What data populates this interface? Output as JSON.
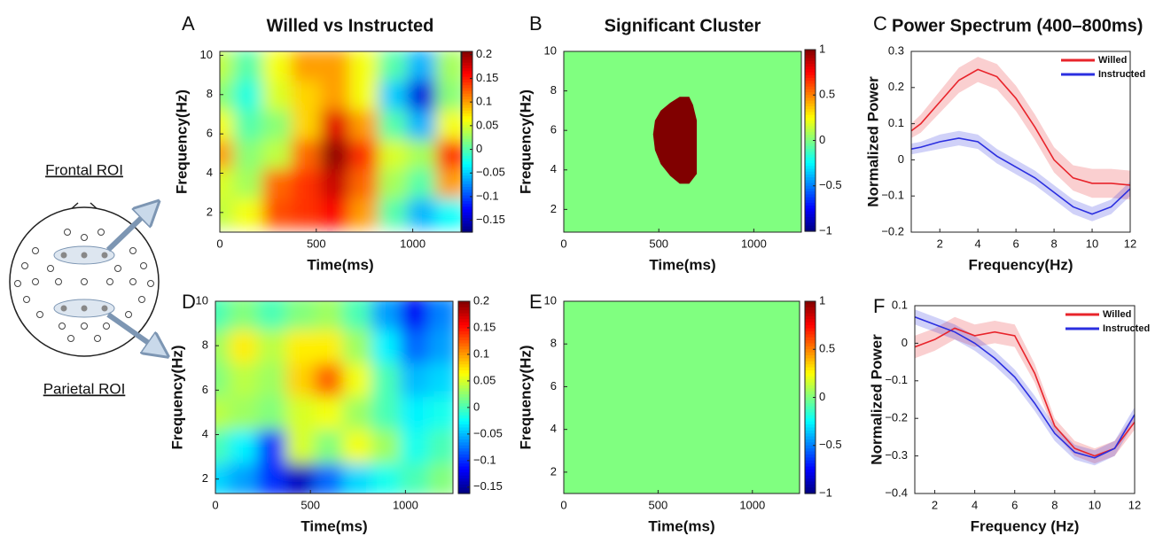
{
  "chart_data": [
    {
      "type": "heatmap",
      "panel": "A",
      "title": "Willed vs Instructed",
      "xlabel": "Time(ms)",
      "ylabel": "Frequency(Hz)",
      "colormap": "jet",
      "x": [
        0,
        150,
        300,
        450,
        600,
        750,
        900,
        1050,
        1200
      ],
      "y": [
        2,
        3.5,
        5,
        6.5,
        8,
        9.5
      ],
      "values": [
        [
          0.04,
          0.06,
          0.13,
          0.14,
          0.16,
          0.1,
          0.0,
          -0.06,
          -0.03
        ],
        [
          0.05,
          0.03,
          0.12,
          0.14,
          0.18,
          0.12,
          0.03,
          0.0,
          0.1
        ],
        [
          0.1,
          0.02,
          0.04,
          0.12,
          0.2,
          0.14,
          0.05,
          0.03,
          0.14
        ],
        [
          0.06,
          0.0,
          0.02,
          0.08,
          0.17,
          0.1,
          0.0,
          -0.06,
          0.06
        ],
        [
          0.02,
          -0.02,
          0.05,
          0.08,
          0.1,
          0.06,
          -0.05,
          -0.14,
          0.02
        ],
        [
          0.04,
          0.0,
          0.06,
          0.1,
          0.1,
          0.06,
          0.0,
          -0.06,
          0.03
        ]
      ],
      "xlim": [
        0,
        1250
      ],
      "ylim": [
        1,
        10.2
      ],
      "xticks": [
        0,
        500,
        1000
      ],
      "yticks": [
        2,
        4,
        6,
        8,
        10
      ],
      "clim": [
        -0.175,
        0.207
      ],
      "cticks": [
        0.2,
        0.15,
        0.1,
        0.05,
        0,
        {
          "value": -0.05,
          "label": "−0.05"
        },
        {
          "value": -0.1,
          "label": "−0.1"
        },
        {
          "value": -0.15,
          "label": "−0.15"
        }
      ]
    },
    {
      "type": "mask",
      "panel": "B",
      "title": "Significant Cluster",
      "xlabel": "Time(ms)",
      "ylabel": "Frequency(Hz)",
      "colormap": "jet",
      "background_value": 0,
      "cluster": {
        "value": 1,
        "x": [
          610,
          660,
          680,
          700,
          700,
          660,
          610,
          560,
          510,
          480,
          470,
          480,
          510,
          560
        ],
        "y": [
          7.7,
          7.7,
          7.3,
          6.5,
          3.8,
          3.3,
          3.3,
          3.7,
          4.3,
          5.0,
          5.8,
          6.5,
          7.0,
          7.4
        ]
      },
      "xlim": [
        0,
        1250
      ],
      "ylim": [
        0.85,
        10
      ],
      "xticks": [
        0,
        500,
        1000
      ],
      "yticks": [
        2,
        4,
        6,
        8,
        10
      ],
      "clim": [
        -1,
        1
      ],
      "cticks": [
        1,
        0.5,
        0,
        {
          "value": -0.5,
          "label": "−0.5"
        },
        {
          "value": -1,
          "label": "−1"
        }
      ]
    },
    {
      "type": "line",
      "panel": "C",
      "title": "Power Spectrum (400–800ms)",
      "xlabel": "Frequency(Hz)",
      "ylabel": "Normalized Power",
      "legend": "upper right",
      "x": [
        0.5,
        1,
        2,
        3,
        4,
        5,
        6,
        7,
        8,
        9,
        10,
        11,
        12
      ],
      "series": [
        {
          "name": "Willed",
          "color": "#e8242b",
          "values": [
            0.08,
            0.1,
            0.16,
            0.22,
            0.25,
            0.23,
            0.17,
            0.09,
            0.0,
            -0.05,
            -0.065,
            -0.065,
            -0.07
          ],
          "errors": [
            0.02,
            0.025,
            0.03,
            0.035,
            0.035,
            0.035,
            0.035,
            0.035,
            0.035,
            0.035,
            0.04,
            0.04,
            0.04
          ]
        },
        {
          "name": "Instructed",
          "color": "#2b2fe0",
          "values": [
            0.03,
            0.035,
            0.05,
            0.06,
            0.05,
            0.01,
            -0.02,
            -0.05,
            -0.09,
            -0.13,
            -0.15,
            -0.13,
            -0.08
          ],
          "errors": [
            0.015,
            0.015,
            0.02,
            0.02,
            0.02,
            0.02,
            0.02,
            0.02,
            0.02,
            0.02,
            0.02,
            0.02,
            0.02
          ]
        }
      ],
      "xlim": [
        0.5,
        12
      ],
      "ylim": [
        -0.2,
        0.3
      ],
      "xticks": [
        2,
        4,
        6,
        8,
        10,
        12
      ],
      "yticks": [
        {
          "value": -0.2,
          "label": "−0.2"
        },
        {
          "value": -0.1,
          "label": "−0.1"
        },
        0,
        0.1,
        0.2,
        0.3
      ]
    },
    {
      "type": "heatmap",
      "panel": "D",
      "xlabel": "Time(ms)",
      "ylabel": "Frequency(Hz)",
      "colormap": "jet",
      "x": [
        0,
        150,
        300,
        450,
        600,
        750,
        900,
        1050,
        1200
      ],
      "y": [
        2,
        3.5,
        5,
        6.5,
        8,
        9.5
      ],
      "values": [
        [
          -0.04,
          -0.06,
          -0.1,
          -0.14,
          -0.08,
          -0.04,
          -0.02,
          0.0,
          0.02
        ],
        [
          0.0,
          -0.03,
          -0.1,
          0.05,
          0.02,
          0.06,
          0.03,
          -0.02,
          0.0
        ],
        [
          0.04,
          0.03,
          0.02,
          0.05,
          0.06,
          0.03,
          0.0,
          -0.03,
          -0.02
        ],
        [
          0.02,
          0.04,
          0.03,
          0.08,
          0.12,
          0.06,
          0.0,
          -0.05,
          -0.04
        ],
        [
          0.03,
          0.07,
          0.04,
          0.07,
          0.07,
          0.03,
          -0.03,
          -0.08,
          -0.06
        ],
        [
          0.0,
          0.02,
          0.0,
          0.02,
          0.03,
          0.0,
          -0.06,
          -0.12,
          -0.07
        ]
      ],
      "xlim": [
        0,
        1250
      ],
      "ylim": [
        1.35,
        10
      ],
      "xticks": [
        0,
        500,
        1000
      ],
      "yticks": [
        2,
        4,
        6,
        8,
        10
      ],
      "clim": [
        -0.162,
        0.2
      ],
      "cticks": [
        0.2,
        0.15,
        0.1,
        0.05,
        0,
        {
          "value": -0.05,
          "label": "−0.05"
        },
        {
          "value": -0.1,
          "label": "−0.1"
        },
        {
          "value": -0.15,
          "label": "−0.15"
        }
      ]
    },
    {
      "type": "mask",
      "panel": "E",
      "xlabel": "Time(ms)",
      "ylabel": "Frequency(Hz)",
      "colormap": "jet",
      "background_value": 0,
      "xlim": [
        0,
        1250
      ],
      "ylim": [
        1,
        10
      ],
      "xticks": [
        0,
        500,
        1000
      ],
      "yticks": [
        2,
        4,
        6,
        8,
        10
      ],
      "clim": [
        -1,
        1
      ],
      "cticks": [
        1,
        0.5,
        0,
        {
          "value": -0.5,
          "label": "−0.5"
        },
        {
          "value": -1,
          "label": "−1"
        }
      ]
    },
    {
      "type": "line",
      "panel": "F",
      "xlabel": "Frequency (Hz)",
      "ylabel": "Normalized Power",
      "legend": "upper right",
      "x": [
        1,
        2,
        3,
        4,
        5,
        6,
        7,
        8,
        9,
        10,
        11,
        12
      ],
      "series": [
        {
          "name": "Willed",
          "color": "#e8242b",
          "values": [
            -0.01,
            0.01,
            0.04,
            0.02,
            0.03,
            0.02,
            -0.08,
            -0.22,
            -0.28,
            -0.3,
            -0.28,
            -0.21
          ],
          "errors": [
            0.03,
            0.03,
            0.03,
            0.03,
            0.03,
            0.03,
            0.025,
            0.02,
            0.02,
            0.02,
            0.02,
            0.02
          ]
        },
        {
          "name": "Instructed",
          "color": "#2b2fe0",
          "values": [
            0.07,
            0.05,
            0.03,
            0.0,
            -0.04,
            -0.09,
            -0.16,
            -0.24,
            -0.29,
            -0.305,
            -0.28,
            -0.19
          ],
          "errors": [
            0.02,
            0.02,
            0.02,
            0.02,
            0.02,
            0.02,
            0.02,
            0.02,
            0.02,
            0.02,
            0.02,
            0.02
          ]
        }
      ],
      "xlim": [
        1,
        12
      ],
      "ylim": [
        -0.4,
        0.1
      ],
      "xticks": [
        2,
        4,
        6,
        8,
        10,
        12
      ],
      "yticks": [
        {
          "value": -0.4,
          "label": "−0.4"
        },
        {
          "value": -0.3,
          "label": "−0.3"
        },
        {
          "value": -0.2,
          "label": "−0.2"
        },
        {
          "value": -0.1,
          "label": "−0.1"
        },
        0,
        0.1
      ]
    }
  ],
  "diagram": {
    "frontal_label": "Frontal ROI",
    "parietal_label": "Parietal ROI"
  }
}
